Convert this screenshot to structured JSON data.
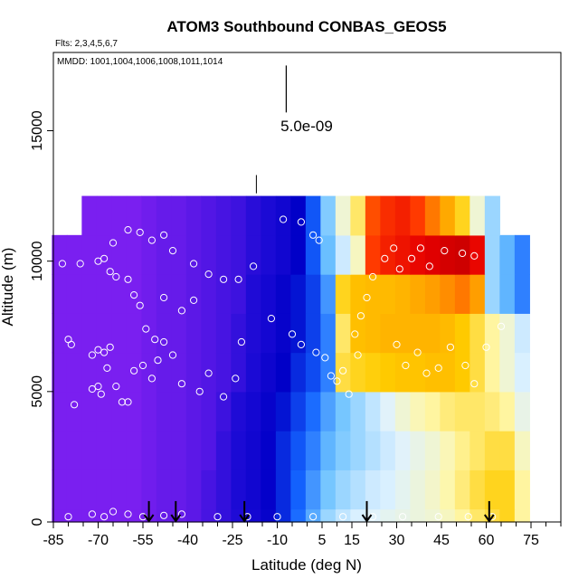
{
  "chart_data": {
    "type": "heatmap",
    "title": "ATOM3 Southbound CONBAS_GEOS5",
    "subtitle_flights": "Flts: 2,3,4,5,6,7",
    "subtitle_dates": "MMDD: 1001,1004,1006,1008,1011,1014",
    "xlabel": "Latitude (deg N)",
    "ylabel": "Altitude (m)",
    "xlim": [
      -85,
      85
    ],
    "ylim": [
      0,
      18000
    ],
    "x_ticks": [
      -85,
      -70,
      -55,
      -40,
      -25,
      -10,
      5,
      15,
      30,
      45,
      60,
      75
    ],
    "y_ticks": [
      0,
      5000,
      10000,
      15000
    ],
    "scale_bar_label": "5.0e-09",
    "colormap": [
      "#7a1ff0",
      "#1e0bd6",
      "#0000c8",
      "#1464ff",
      "#6ec3ff",
      "#dff2ff",
      "#fff7a8",
      "#ffcc00",
      "#ff9a00",
      "#ff3b00",
      "#e60000",
      "#b00000"
    ],
    "lat_bins": [
      -83,
      -78,
      -73,
      -68,
      -63,
      -58,
      -53,
      -48,
      -43,
      -38,
      -33,
      -28,
      -23,
      -18,
      -13,
      -8,
      -3,
      2,
      7,
      12,
      17,
      22,
      27,
      32,
      37,
      42,
      47,
      52,
      57,
      62,
      67,
      72
    ],
    "field_rows": [
      {
        "alt_range": [
          0,
          500
        ],
        "values": [
          0.0,
          0.0,
          0.0,
          0.0,
          0.0,
          0.0,
          0.01,
          0.02,
          0.02,
          0.03,
          0.05,
          0.07,
          0.09,
          0.12,
          0.16,
          0.22,
          0.28,
          0.34,
          0.4,
          0.43,
          0.45,
          0.46,
          0.47,
          0.48,
          0.49,
          0.5,
          0.52,
          0.55,
          0.58,
          0.6,
          0.62,
          0.55
        ]
      },
      {
        "alt_range": [
          500,
          2000
        ],
        "values": [
          0.0,
          0.0,
          0.0,
          0.0,
          0.0,
          0.0,
          0.01,
          0.02,
          0.02,
          0.03,
          0.05,
          0.07,
          0.1,
          0.13,
          0.17,
          0.22,
          0.27,
          0.32,
          0.37,
          0.4,
          0.42,
          0.44,
          0.45,
          0.47,
          0.49,
          0.51,
          0.54,
          0.57,
          0.6,
          0.62,
          0.62,
          0.55
        ]
      },
      {
        "alt_range": [
          2000,
          3500
        ],
        "values": [
          0.0,
          0.0,
          0.0,
          0.0,
          0.0,
          0.0,
          0.01,
          0.02,
          0.02,
          0.03,
          0.04,
          0.07,
          0.1,
          0.13,
          0.17,
          0.22,
          0.26,
          0.3,
          0.35,
          0.38,
          0.4,
          0.42,
          0.44,
          0.46,
          0.48,
          0.5,
          0.53,
          0.56,
          0.58,
          0.6,
          0.6,
          0.52
        ]
      },
      {
        "alt_range": [
          3500,
          5000
        ],
        "values": [
          0.0,
          0.0,
          0.0,
          0.0,
          0.0,
          0.0,
          0.01,
          0.02,
          0.02,
          0.03,
          0.04,
          0.06,
          0.09,
          0.12,
          0.16,
          0.2,
          0.24,
          0.28,
          0.33,
          0.37,
          0.4,
          0.43,
          0.46,
          0.5,
          0.53,
          0.55,
          0.57,
          0.58,
          0.58,
          0.57,
          0.55,
          0.48
        ]
      },
      {
        "alt_range": [
          5000,
          6500
        ],
        "values": [
          0.0,
          0.0,
          0.0,
          0.0,
          0.0,
          0.0,
          0.01,
          0.02,
          0.02,
          0.03,
          0.04,
          0.05,
          0.07,
          0.1,
          0.14,
          0.18,
          0.22,
          0.25,
          0.3,
          0.6,
          0.62,
          0.63,
          0.64,
          0.65,
          0.65,
          0.66,
          0.66,
          0.64,
          0.6,
          0.55,
          0.5,
          0.45
        ]
      },
      {
        "alt_range": [
          6500,
          8000
        ],
        "values": [
          0.0,
          0.0,
          0.0,
          0.0,
          0.0,
          0.0,
          0.01,
          0.02,
          0.02,
          0.03,
          0.04,
          0.05,
          0.07,
          0.09,
          0.12,
          0.16,
          0.2,
          0.24,
          0.3,
          0.58,
          0.66,
          0.67,
          0.68,
          0.68,
          0.68,
          0.68,
          0.67,
          0.64,
          0.6,
          0.55,
          0.5,
          0.44
        ]
      },
      {
        "alt_range": [
          8000,
          9500
        ],
        "values": [
          0.0,
          0.0,
          0.0,
          0.0,
          0.0,
          0.0,
          0.01,
          0.02,
          0.02,
          0.03,
          0.04,
          0.05,
          0.06,
          0.09,
          0.12,
          0.16,
          0.2,
          0.24,
          0.32,
          0.62,
          0.66,
          0.67,
          0.67,
          0.68,
          0.7,
          0.72,
          0.74,
          0.76,
          0.72,
          0.4,
          0.35,
          0.3
        ]
      },
      {
        "alt_range": [
          9500,
          11000
        ],
        "values": [
          0.0,
          0.0,
          0.0,
          0.0,
          0.0,
          0.0,
          0.01,
          0.02,
          0.02,
          0.03,
          0.04,
          0.05,
          0.06,
          0.08,
          0.1,
          0.13,
          0.18,
          0.26,
          0.36,
          0.44,
          0.52,
          0.82,
          0.86,
          0.88,
          0.9,
          0.92,
          0.94,
          0.95,
          0.9,
          0.4,
          0.35,
          0.3
        ]
      },
      {
        "alt_range": [
          11000,
          12500
        ],
        "values": [
          null,
          null,
          0.0,
          0.0,
          0.0,
          0.0,
          0.01,
          0.02,
          0.02,
          0.03,
          0.04,
          0.05,
          0.06,
          0.08,
          0.1,
          0.13,
          0.18,
          0.26,
          0.38,
          0.5,
          0.58,
          0.8,
          0.84,
          0.86,
          0.82,
          0.76,
          0.7,
          0.62,
          0.5,
          0.4,
          null,
          null
        ]
      }
    ],
    "sample_points": [
      [
        -80,
        7000
      ],
      [
        -79,
        6800
      ],
      [
        -78,
        4500
      ],
      [
        -82,
        9900
      ],
      [
        -76,
        9900
      ],
      [
        -72,
        6400
      ],
      [
        -70,
        6600
      ],
      [
        -68,
        6500
      ],
      [
        -66,
        6700
      ],
      [
        -67,
        5900
      ],
      [
        -70,
        5200
      ],
      [
        -72,
        5100
      ],
      [
        -69,
        4900
      ],
      [
        -64,
        5200
      ],
      [
        -62,
        4600
      ],
      [
        -60,
        4600
      ],
      [
        -58,
        5800
      ],
      [
        -55,
        6000
      ],
      [
        -52,
        5500
      ],
      [
        -50,
        6200
      ],
      [
        -48,
        6900
      ],
      [
        -45,
        6400
      ],
      [
        -42,
        5300
      ],
      [
        -36,
        5000
      ],
      [
        -33,
        5700
      ],
      [
        -28,
        4800
      ],
      [
        -24,
        5500
      ],
      [
        -22,
        6900
      ],
      [
        -70,
        10000
      ],
      [
        -68,
        10100
      ],
      [
        -66,
        9600
      ],
      [
        -64,
        9400
      ],
      [
        -60,
        9300
      ],
      [
        -58,
        8700
      ],
      [
        -56,
        8300
      ],
      [
        -54,
        7400
      ],
      [
        -51,
        7000
      ],
      [
        -48,
        8600
      ],
      [
        -42,
        8100
      ],
      [
        -38,
        8500
      ],
      [
        -65,
        10700
      ],
      [
        -60,
        11200
      ],
      [
        -56,
        11100
      ],
      [
        -52,
        10800
      ],
      [
        -48,
        11000
      ],
      [
        -45,
        10400
      ],
      [
        -38,
        9900
      ],
      [
        -33,
        9500
      ],
      [
        -28,
        9300
      ],
      [
        -23,
        9300
      ],
      [
        -18,
        9800
      ],
      [
        -12,
        7800
      ],
      [
        -8,
        11600
      ],
      [
        -2,
        11500
      ],
      [
        2,
        11000
      ],
      [
        4,
        10800
      ],
      [
        -5,
        7200
      ],
      [
        -2,
        6800
      ],
      [
        3,
        6500
      ],
      [
        6,
        6300
      ],
      [
        8,
        5600
      ],
      [
        10,
        5400
      ],
      [
        12,
        5800
      ],
      [
        14,
        4900
      ],
      [
        16,
        7200
      ],
      [
        17,
        6400
      ],
      [
        18,
        7900
      ],
      [
        20,
        8600
      ],
      [
        22,
        9400
      ],
      [
        26,
        10100
      ],
      [
        29,
        10500
      ],
      [
        31,
        9700
      ],
      [
        35,
        10100
      ],
      [
        38,
        10500
      ],
      [
        41,
        9800
      ],
      [
        46,
        10400
      ],
      [
        52,
        10300
      ],
      [
        56,
        10200
      ],
      [
        30,
        6800
      ],
      [
        33,
        6000
      ],
      [
        37,
        6500
      ],
      [
        40,
        5700
      ],
      [
        44,
        5900
      ],
      [
        48,
        6700
      ],
      [
        53,
        6000
      ],
      [
        56,
        5300
      ],
      [
        60,
        6700
      ],
      [
        65,
        7500
      ],
      [
        -80,
        200
      ],
      [
        -72,
        300
      ],
      [
        -68,
        200
      ],
      [
        -65,
        400
      ],
      [
        -60,
        300
      ],
      [
        -55,
        200
      ],
      [
        -48,
        250
      ],
      [
        -42,
        300
      ],
      [
        -30,
        200
      ],
      [
        -20,
        200
      ],
      [
        -10,
        200
      ],
      [
        2,
        200
      ],
      [
        12,
        200
      ],
      [
        22,
        200
      ],
      [
        32,
        200
      ],
      [
        44,
        200
      ],
      [
        54,
        200
      ],
      [
        62,
        200
      ]
    ],
    "arrows_latitude": [
      -53,
      -44,
      -21,
      20,
      61
    ],
    "arrow_length_m": 800,
    "profile_marks": [
      {
        "x": -17,
        "y_from": 12600,
        "y_to": 13300
      }
    ],
    "scale_bar": {
      "x": -7,
      "y_from": 15700,
      "y_to": 17500
    },
    "grid": false,
    "legend": "none"
  }
}
